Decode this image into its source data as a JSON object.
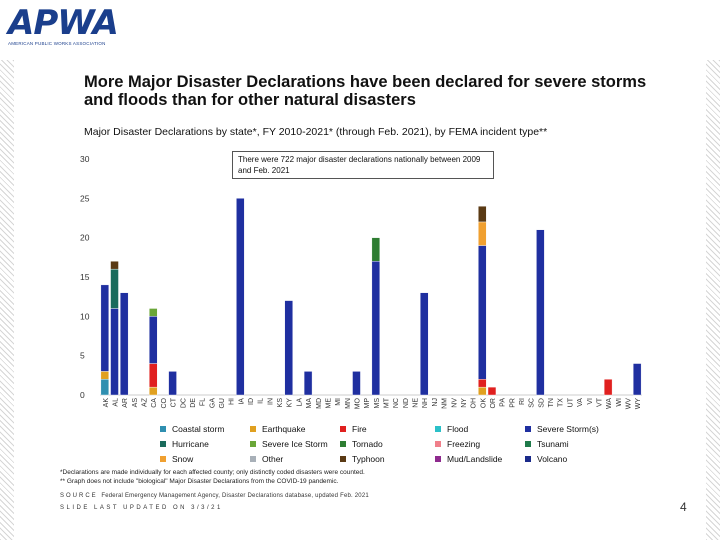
{
  "logo": {
    "mark": "APWA",
    "sub": "AMERICAN PUBLIC WORKS ASSOCIATION"
  },
  "title": "More Major Disaster Declarations have been declared for severe storms and floods than for other natural disasters",
  "subtitle": "Major Disaster Declarations by state*, FY 2010-2021* (through Feb. 2021), by FEMA incident type**",
  "callout": "There were 722 major disaster declarations nationally between 2009 and Feb. 2021",
  "footnotes": {
    "note": "*Declarations are made individually for each affected county; only distinctly coded disasters were counted.",
    "note2": "** Graph does not include \"biological\" Major Disaster Declarations from the COVID-19 pandemic.",
    "source_label": "SOURCE",
    "source_text": "Federal Emergency Management Agency, Disaster Declarations database, updated Feb. 2021",
    "updated": "SLIDE LAST UPDATED ON 3/3/21"
  },
  "page_number": "4",
  "colors": {
    "Coastal storm": "#2f8fb0",
    "Earthquake": "#e0a020",
    "Fire": "#e0201f",
    "Flood": "#2bc0c8",
    "Severe Storm(s)": "#1f2fa0",
    "Hurricane": "#1a6b5c",
    "Severe Ice Storm": "#6aa638",
    "Tornado": "#2e7d32",
    "Freezing": "#f07f8a",
    "Tsunami": "#1f7a4a",
    "Snow": "#f0a030",
    "Other": "#a8b0b8",
    "Typhoon": "#5a3a14",
    "Mud/Landslide": "#8e2a8e",
    "Volcano": "#1a2a8a"
  },
  "chart_data": {
    "type": "bar",
    "stacked": true,
    "title": "Major Disaster Declarations by state*, FY 2010-2021* (through Feb. 2021), by FEMA incident type**",
    "xlabel": "",
    "ylabel": "",
    "ylim": [
      0,
      30
    ],
    "yticks": [
      0,
      5,
      10,
      15,
      20,
      25,
      30
    ],
    "grid": false,
    "legend_position": "bottom",
    "annotation": "There were 722 major disaster declarations nationally between 2009 and Feb. 2021",
    "categories": [
      "AK",
      "AL",
      "AR",
      "AS",
      "AZ",
      "CA",
      "CO",
      "CT",
      "DC",
      "DE",
      "FL",
      "GA",
      "GU",
      "HI",
      "IA",
      "ID",
      "IL",
      "IN",
      "KS",
      "KY",
      "LA",
      "MA",
      "MD",
      "ME",
      "MI",
      "MN",
      "MO",
      "MP",
      "MS",
      "MT",
      "NC",
      "ND",
      "NE",
      "NH",
      "NJ",
      "NM",
      "NV",
      "NY",
      "OH",
      "OK",
      "OR",
      "PA",
      "PR",
      "RI",
      "SC",
      "SD",
      "TN",
      "TX",
      "UT",
      "VA",
      "VI",
      "VT",
      "WA",
      "WI",
      "WV",
      "WY"
    ],
    "series": [
      {
        "name": "Coastal storm",
        "values": [
          2,
          0,
          0,
          0,
          0,
          0,
          0,
          0,
          0,
          0,
          0,
          0,
          0,
          0,
          0,
          0,
          0,
          0,
          0,
          0,
          0,
          0,
          0,
          0,
          0,
          0,
          0,
          0,
          0,
          0,
          0,
          0,
          0,
          0,
          0,
          0,
          0,
          0,
          0,
          0,
          0,
          0,
          0,
          0,
          0,
          0,
          0,
          0,
          0,
          0,
          0,
          0,
          0,
          0,
          0,
          0
        ]
      },
      {
        "name": "Earthquake",
        "values": [
          1,
          0,
          0,
          0,
          0,
          1,
          0,
          0,
          0,
          0,
          0,
          0,
          0,
          0,
          0,
          0,
          0,
          0,
          0,
          0,
          0,
          0,
          0,
          0,
          0,
          0,
          0,
          0,
          0,
          0,
          0,
          0,
          0,
          0,
          0,
          0,
          0,
          0,
          0,
          1,
          0,
          0,
          0,
          0,
          0,
          0,
          0,
          0,
          0,
          0,
          0,
          0,
          0,
          0,
          0,
          0
        ]
      },
      {
        "name": "Fire",
        "values": [
          0,
          0,
          0,
          0,
          0,
          3,
          0,
          0,
          0,
          0,
          0,
          0,
          0,
          0,
          0,
          0,
          0,
          0,
          0,
          0,
          0,
          0,
          0,
          0,
          0,
          0,
          0,
          0,
          0,
          0,
          0,
          0,
          0,
          0,
          0,
          0,
          0,
          0,
          0,
          1,
          1,
          0,
          0,
          0,
          0,
          0,
          0,
          0,
          0,
          0,
          0,
          0,
          2,
          0,
          0,
          0
        ]
      },
      {
        "name": "Flood",
        "values": [
          0,
          0,
          0,
          0,
          0,
          0,
          0,
          0,
          0,
          0,
          0,
          0,
          0,
          0,
          0,
          0,
          0,
          0,
          0,
          0,
          0,
          0,
          0,
          0,
          0,
          0,
          0,
          0,
          0,
          0,
          0,
          0,
          0,
          0,
          0,
          0,
          0,
          0,
          0,
          0,
          0,
          0,
          0,
          0,
          0,
          0,
          0,
          0,
          0,
          0,
          0,
          0,
          0,
          0,
          0,
          0
        ]
      },
      {
        "name": "Severe Storm(s)",
        "values": [
          11,
          11,
          13,
          0,
          0,
          6,
          0,
          3,
          0,
          0,
          0,
          0,
          0,
          0,
          25,
          0,
          0,
          0,
          0,
          12,
          0,
          3,
          0,
          0,
          0,
          0,
          3,
          0,
          17,
          0,
          0,
          0,
          0,
          13,
          0,
          0,
          0,
          0,
          0,
          17,
          0,
          0,
          0,
          0,
          0,
          21,
          0,
          0,
          0,
          0,
          0,
          0,
          0,
          0,
          0,
          4
        ]
      },
      {
        "name": "Hurricane",
        "values": [
          0,
          5,
          0,
          0,
          0,
          0,
          0,
          0,
          0,
          0,
          0,
          0,
          0,
          0,
          0,
          0,
          0,
          0,
          0,
          0,
          0,
          0,
          0,
          0,
          0,
          0,
          0,
          0,
          0,
          0,
          0,
          0,
          0,
          0,
          0,
          0,
          0,
          0,
          0,
          0,
          0,
          0,
          0,
          0,
          0,
          0,
          0,
          0,
          0,
          0,
          0,
          0,
          0,
          0,
          0,
          0
        ]
      },
      {
        "name": "Severe Ice Storm",
        "values": [
          0,
          0,
          0,
          0,
          0,
          1,
          0,
          0,
          0,
          0,
          0,
          0,
          0,
          0,
          0,
          0,
          0,
          0,
          0,
          0,
          0,
          0,
          0,
          0,
          0,
          0,
          0,
          0,
          0,
          0,
          0,
          0,
          0,
          0,
          0,
          0,
          0,
          0,
          0,
          0,
          0,
          0,
          0,
          0,
          0,
          0,
          0,
          0,
          0,
          0,
          0,
          0,
          0,
          0,
          0,
          0
        ]
      },
      {
        "name": "Tornado",
        "values": [
          0,
          0,
          0,
          0,
          0,
          0,
          0,
          0,
          0,
          0,
          0,
          0,
          0,
          0,
          0,
          0,
          0,
          0,
          0,
          0,
          0,
          0,
          0,
          0,
          0,
          0,
          0,
          0,
          3,
          0,
          0,
          0,
          0,
          0,
          0,
          0,
          0,
          0,
          0,
          0,
          0,
          0,
          0,
          0,
          0,
          0,
          0,
          0,
          0,
          0,
          0,
          0,
          0,
          0,
          0,
          0
        ]
      },
      {
        "name": "Freezing",
        "values": [
          0,
          0,
          0,
          0,
          0,
          0,
          0,
          0,
          0,
          0,
          0,
          0,
          0,
          0,
          0,
          0,
          0,
          0,
          0,
          0,
          0,
          0,
          0,
          0,
          0,
          0,
          0,
          0,
          0,
          0,
          0,
          0,
          0,
          0,
          0,
          0,
          0,
          0,
          0,
          0,
          0,
          0,
          0,
          0,
          0,
          0,
          0,
          0,
          0,
          0,
          0,
          0,
          0,
          0,
          0,
          0
        ]
      },
      {
        "name": "Tsunami",
        "values": [
          0,
          0,
          0,
          0,
          0,
          0,
          0,
          0,
          0,
          0,
          0,
          0,
          0,
          0,
          0,
          0,
          0,
          0,
          0,
          0,
          0,
          0,
          0,
          0,
          0,
          0,
          0,
          0,
          0,
          0,
          0,
          0,
          0,
          0,
          0,
          0,
          0,
          0,
          0,
          0,
          0,
          0,
          0,
          0,
          0,
          0,
          0,
          0,
          0,
          0,
          0,
          0,
          0,
          0,
          0,
          0
        ]
      },
      {
        "name": "Snow",
        "values": [
          0,
          0,
          0,
          0,
          0,
          0,
          0,
          0,
          0,
          0,
          0,
          0,
          0,
          0,
          0,
          0,
          0,
          0,
          0,
          0,
          0,
          0,
          0,
          0,
          0,
          0,
          0,
          0,
          0,
          0,
          0,
          0,
          0,
          0,
          0,
          0,
          0,
          0,
          0,
          3,
          0,
          0,
          0,
          0,
          0,
          0,
          0,
          0,
          0,
          0,
          0,
          0,
          0,
          0,
          0,
          0
        ]
      },
      {
        "name": "Other",
        "values": [
          0,
          0,
          0,
          0,
          0,
          0,
          0,
          0,
          0,
          0,
          0,
          0,
          0,
          0,
          0,
          0,
          0,
          0,
          0,
          0,
          0,
          0,
          0,
          0,
          0,
          0,
          0,
          0,
          0,
          0,
          0,
          0,
          0,
          0,
          0,
          0,
          0,
          0,
          0,
          0,
          0,
          0,
          0,
          0,
          0,
          0,
          0,
          0,
          0,
          0,
          0,
          0,
          0,
          0,
          0,
          0
        ]
      },
      {
        "name": "Typhoon",
        "values": [
          0,
          1,
          0,
          0,
          0,
          0,
          0,
          0,
          0,
          0,
          0,
          0,
          0,
          0,
          0,
          0,
          0,
          0,
          0,
          0,
          0,
          0,
          0,
          0,
          0,
          0,
          0,
          0,
          0,
          0,
          0,
          0,
          0,
          0,
          0,
          0,
          0,
          0,
          0,
          2,
          0,
          0,
          0,
          0,
          0,
          0,
          0,
          0,
          0,
          0,
          0,
          0,
          0,
          0,
          0,
          0
        ]
      },
      {
        "name": "Mud/Landslide",
        "values": [
          0,
          0,
          0,
          0,
          0,
          0,
          0,
          0,
          0,
          0,
          0,
          0,
          0,
          0,
          0,
          0,
          0,
          0,
          0,
          0,
          0,
          0,
          0,
          0,
          0,
          0,
          0,
          0,
          0,
          0,
          0,
          0,
          0,
          0,
          0,
          0,
          0,
          0,
          0,
          0,
          0,
          0,
          0,
          0,
          0,
          0,
          0,
          0,
          0,
          0,
          0,
          0,
          0,
          0,
          0,
          0
        ]
      },
      {
        "name": "Volcano",
        "values": [
          0,
          0,
          0,
          0,
          0,
          0,
          0,
          0,
          0,
          0,
          0,
          0,
          0,
          0,
          0,
          0,
          0,
          0,
          0,
          0,
          0,
          0,
          0,
          0,
          0,
          0,
          0,
          0,
          0,
          0,
          0,
          0,
          0,
          0,
          0,
          0,
          0,
          0,
          0,
          0,
          0,
          0,
          0,
          0,
          0,
          0,
          0,
          0,
          0,
          0,
          0,
          0,
          0,
          0,
          0,
          0
        ]
      }
    ]
  }
}
